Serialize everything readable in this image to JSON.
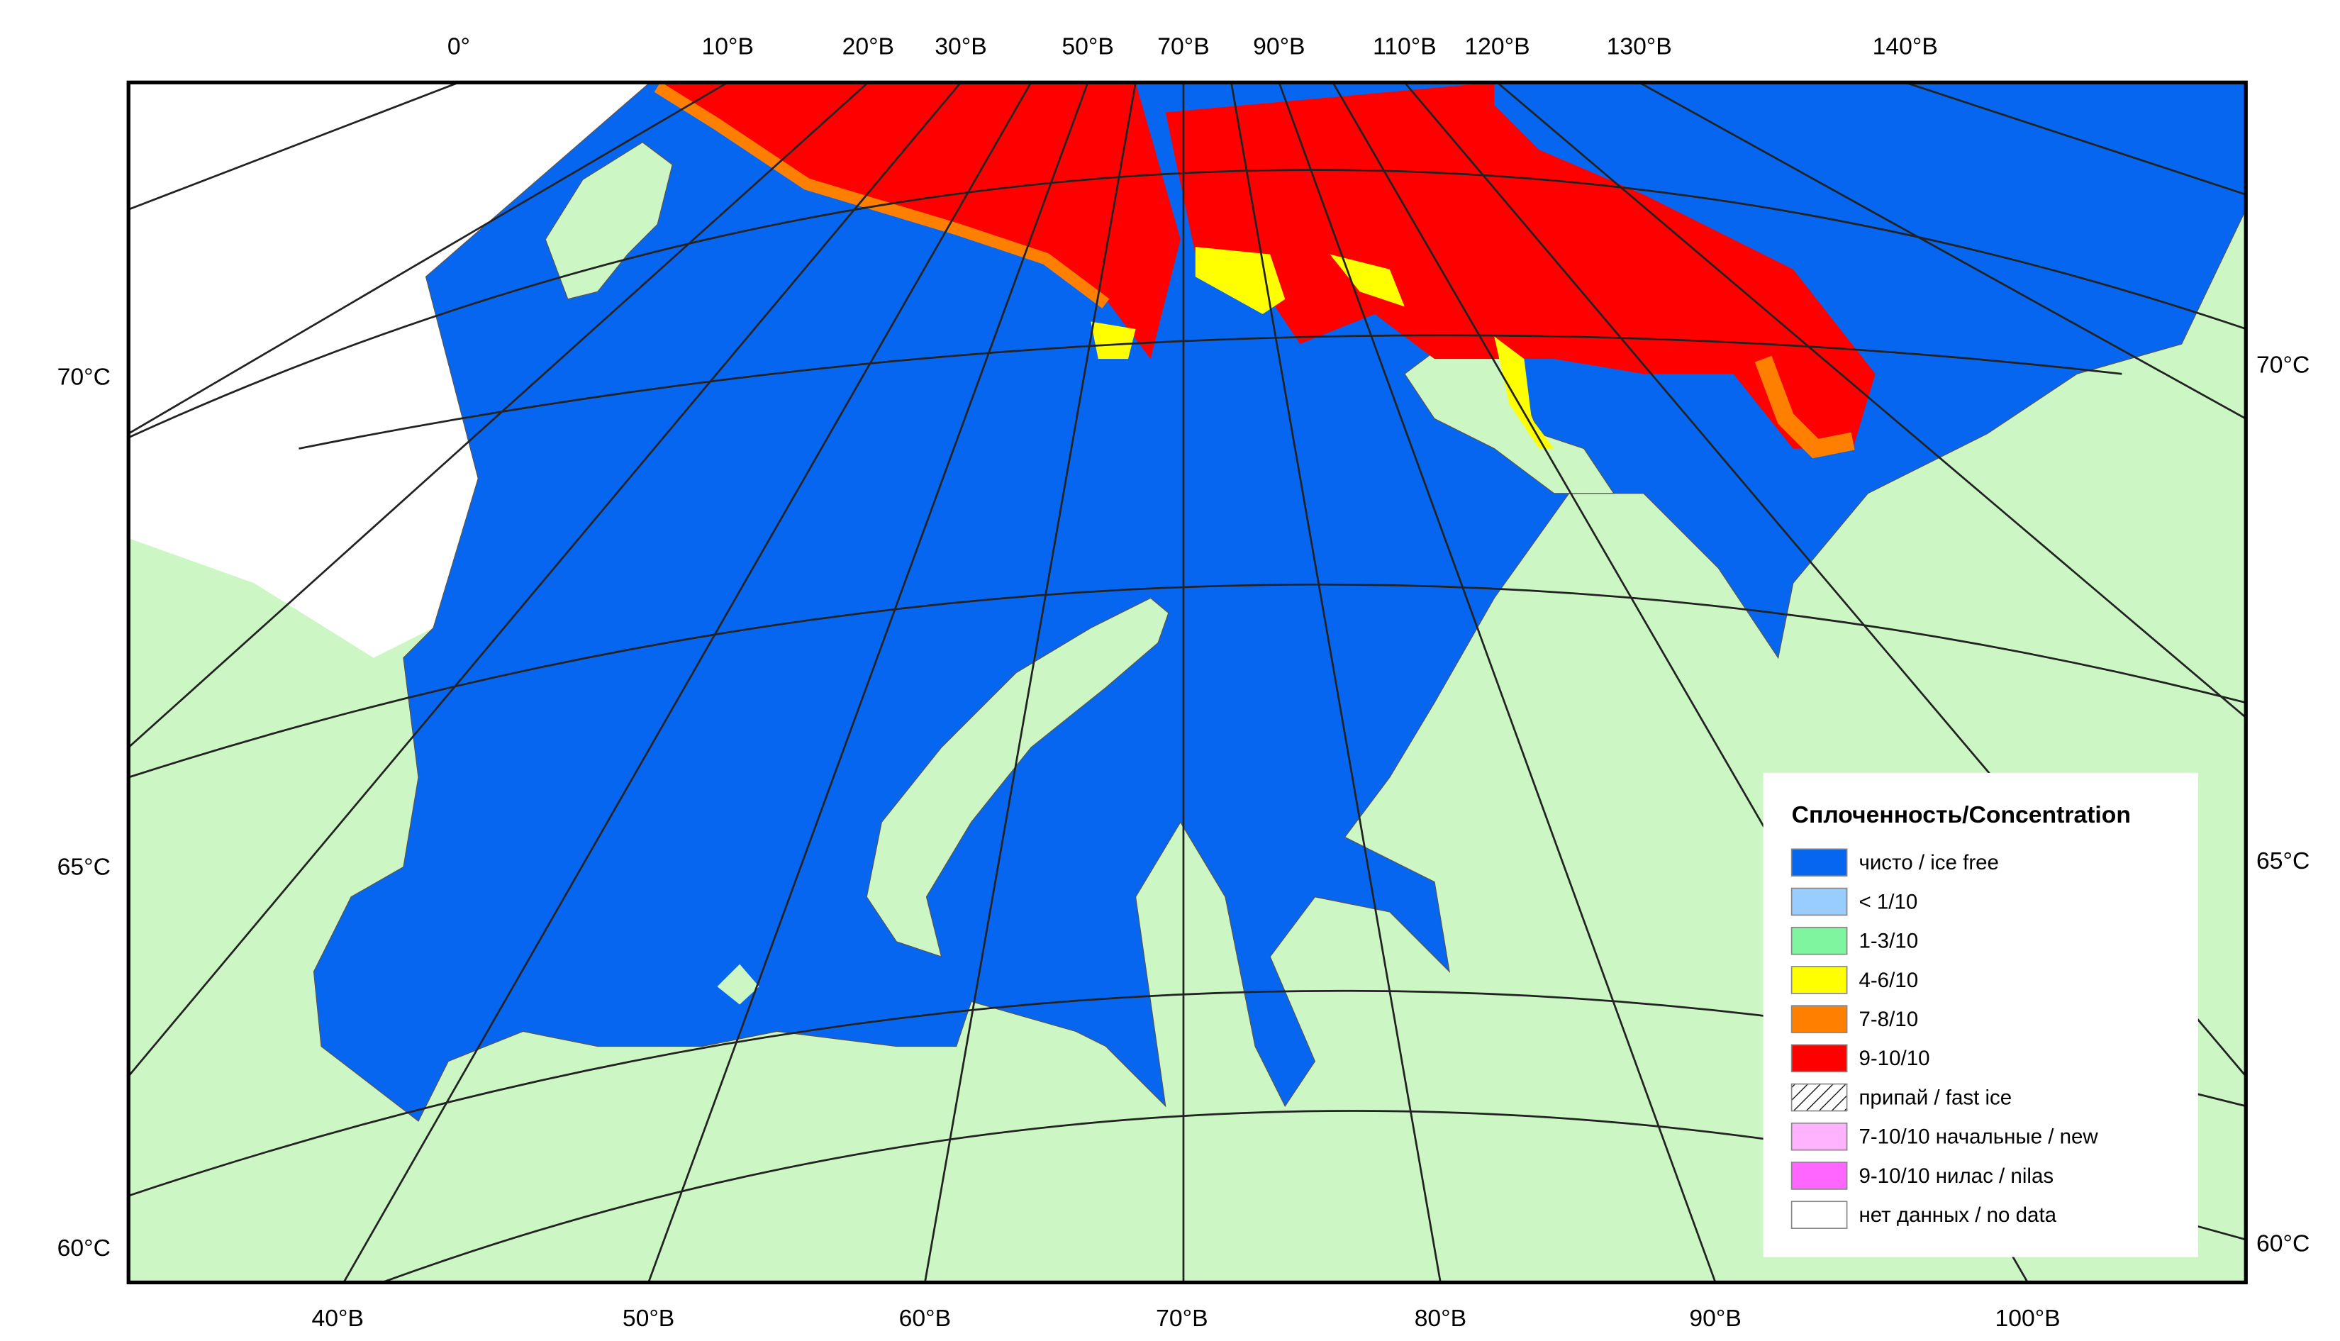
{
  "map": {
    "top_labels": [
      "0°",
      "10°В",
      "20°В",
      "30°В",
      "50°В",
      "70°В",
      "90°В",
      "110°В",
      "120°В",
      "130°В",
      "140°В"
    ],
    "bottom_labels": [
      "40°В",
      "50°В",
      "60°В",
      "70°В",
      "80°В",
      "90°В",
      "100°В"
    ],
    "left_labels": [
      "70°С",
      "65°С",
      "60°С"
    ],
    "right_labels": [
      "70°С",
      "65°С",
      "60°С"
    ],
    "legend": {
      "title": "Сплоченность/Concentration",
      "items": [
        {
          "label": "чисто / ice free",
          "color": "#0766f0"
        },
        {
          "label": "< 1/10",
          "color": "#99ccff"
        },
        {
          "label": "1-3/10",
          "color": "#80f5a0"
        },
        {
          "label": "4-6/10",
          "color": "#ffff00"
        },
        {
          "label": "7-8/10",
          "color": "#ff8000"
        },
        {
          "label": "9-10/10",
          "color": "#ff0000"
        },
        {
          "label": "припай / fast ice"
        },
        {
          "label": "7-10/10 начальные / new",
          "color": "#ffb3ff"
        },
        {
          "label": "9-10/10 нилас / nilas",
          "color": "#ff66ff"
        },
        {
          "label": "нет данных / no data",
          "color": "#ffffff"
        }
      ]
    }
  }
}
